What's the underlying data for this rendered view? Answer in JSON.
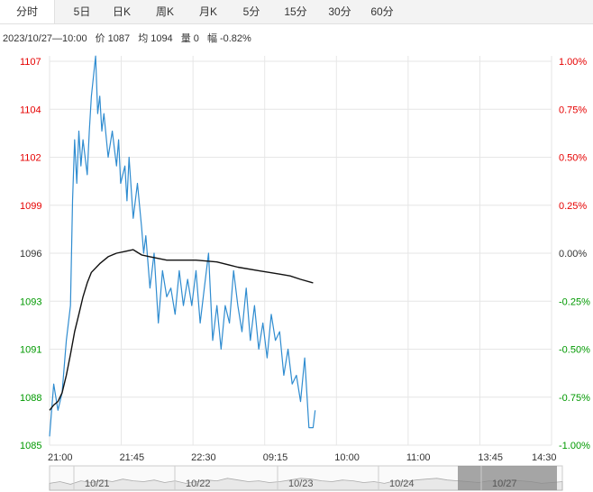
{
  "tabs": [
    {
      "label": "分时",
      "active": true
    },
    {
      "label": "5日",
      "active": false
    },
    {
      "label": "日K",
      "active": false
    },
    {
      "label": "周K",
      "active": false
    },
    {
      "label": "月K",
      "active": false
    },
    {
      "label": "5分",
      "active": false
    },
    {
      "label": "15分",
      "active": false
    },
    {
      "label": "30分",
      "active": false
    },
    {
      "label": "60分",
      "active": false
    }
  ],
  "info": {
    "datetime": "2023/10/27—10:00",
    "price_label": "价",
    "price": "1087",
    "avg_label": "均",
    "avg": "1094",
    "volume_label": "量",
    "volume": "0",
    "change_label": "幅",
    "change": "-0.82%"
  },
  "colors": {
    "up": "#e60000",
    "down": "#009900",
    "neutral": "#333333",
    "price_line": "#2f8cd0",
    "avg_line": "#111111",
    "grid": "#e6e6e6",
    "navigator_fill": "#888888"
  },
  "chart_data": {
    "type": "line",
    "title": "",
    "xlabel": "",
    "ylabel": "",
    "grid": true,
    "left_axis": {
      "ticks": [
        1107,
        1104,
        1102,
        1099,
        1096,
        1093,
        1091,
        1088,
        1085
      ],
      "tick_labels": [
        "1107",
        "1104",
        "1102",
        "1099",
        "1096",
        "1093",
        "1091",
        "1088",
        "1085"
      ],
      "range": [
        1085,
        1107
      ],
      "reference": 1096
    },
    "right_axis": {
      "tick_labels": [
        "1.00%",
        "0.75%",
        "0.50%",
        "0.25%",
        "0.00%",
        "-0.25%",
        "-0.50%",
        "-0.75%",
        "-1.00%"
      ]
    },
    "x_tick_labels": [
      "21:00",
      "21:45",
      "22:30",
      "09:15",
      "10:00",
      "11:00",
      "13:45",
      "14:30"
    ],
    "x_positions": 240,
    "series": [
      {
        "role": "price",
        "x": [
          0,
          2,
          4,
          6,
          8,
          10,
          11,
          12,
          13,
          14,
          15,
          16,
          18,
          19,
          20,
          22,
          23,
          24,
          25,
          26,
          28,
          30,
          31,
          32,
          33,
          34,
          36,
          37,
          38,
          40,
          42,
          44,
          45,
          46,
          48,
          50,
          52,
          54,
          56,
          58,
          60,
          62,
          64,
          66,
          68,
          70,
          72,
          74,
          76,
          78,
          80,
          82,
          84,
          86,
          88,
          90,
          92,
          94,
          96,
          98,
          100,
          102,
          104,
          106,
          108,
          110,
          112,
          114,
          116,
          118,
          120,
          122,
          124,
          126,
          127
        ],
        "values": [
          1085.5,
          1088.5,
          1087.0,
          1088.0,
          1091.0,
          1093.0,
          1099.0,
          1102.5,
          1100.0,
          1103.0,
          1101.0,
          1102.5,
          1100.5,
          1103.0,
          1105.0,
          1107.3,
          1104.0,
          1105.0,
          1103.0,
          1104.0,
          1101.5,
          1103.0,
          1102.0,
          1101.0,
          1102.5,
          1100.0,
          1101.0,
          1099.0,
          1101.5,
          1098.0,
          1100.0,
          1097.5,
          1096.0,
          1097.0,
          1094.0,
          1096.0,
          1092.0,
          1095.0,
          1093.5,
          1094.0,
          1092.5,
          1095.0,
          1093.0,
          1094.5,
          1093.0,
          1095.0,
          1092.0,
          1094.0,
          1096.0,
          1091.0,
          1093.0,
          1090.5,
          1093.0,
          1092.0,
          1095.0,
          1093.0,
          1091.5,
          1094.0,
          1091.0,
          1093.0,
          1090.5,
          1092.0,
          1090.0,
          1092.5,
          1091.0,
          1091.5,
          1089.0,
          1090.5,
          1088.5,
          1089.0,
          1087.5,
          1090.0,
          1086.0,
          1086.0,
          1087.0
        ]
      },
      {
        "role": "average",
        "x": [
          0,
          2,
          4,
          6,
          8,
          10,
          12,
          14,
          16,
          18,
          20,
          24,
          28,
          32,
          36,
          40,
          44,
          48,
          52,
          56,
          60,
          70,
          80,
          90,
          100,
          110,
          115,
          120,
          126
        ],
        "values": [
          1087.0,
          1087.3,
          1087.5,
          1088.0,
          1089.0,
          1090.2,
          1091.5,
          1092.5,
          1093.5,
          1094.3,
          1094.9,
          1095.4,
          1095.8,
          1096.0,
          1096.1,
          1096.2,
          1095.9,
          1095.8,
          1095.7,
          1095.6,
          1095.6,
          1095.6,
          1095.5,
          1095.2,
          1095.0,
          1094.8,
          1094.7,
          1094.5,
          1094.3
        ]
      }
    ]
  },
  "navigator": {
    "date_labels": [
      "10/21",
      "10/22",
      "10/23",
      "10/24",
      "10/27"
    ],
    "profile": [
      0.4,
      0.5,
      0.35,
      0.55,
      0.45,
      0.6,
      0.5,
      0.65,
      0.55,
      0.5,
      0.6,
      0.45,
      0.55,
      0.4,
      0.5,
      0.6,
      0.55,
      0.7,
      0.6,
      0.5,
      0.55,
      0.45,
      0.5,
      0.6,
      0.7,
      0.65,
      0.55,
      0.5,
      0.6,
      0.55,
      0.45,
      0.5,
      0.4,
      0.55,
      0.5,
      0.6,
      0.65,
      0.7,
      0.6,
      0.55,
      0.5,
      0.45,
      0.55,
      0.5,
      0.6,
      0.55,
      0.5,
      0.4,
      0.45,
      0.5
    ]
  }
}
